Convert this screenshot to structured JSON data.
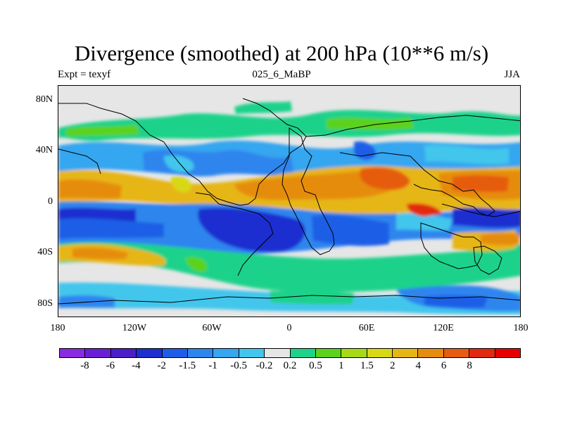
{
  "title": "Divergence (smoothed) at 200 hPa (10**6 m/s)",
  "subtitle_left": "Expt = texyf",
  "subtitle_center": "025_6_MaBP",
  "subtitle_right": "JJA",
  "y_ticks": [
    "80N",
    "40N",
    "0",
    "40S",
    "80S"
  ],
  "x_ticks": [
    "180",
    "120W",
    "60W",
    "0",
    "60E",
    "120E",
    "180"
  ],
  "colorbar": {
    "colors": [
      "#8a2be2",
      "#6a1fd6",
      "#4b1fc8",
      "#1e2fd0",
      "#1e5ee6",
      "#2d85ee",
      "#35a6f0",
      "#42c6ec",
      "#e6e6e6",
      "#1fd28a",
      "#5bd21c",
      "#a6d916",
      "#d8d816",
      "#e6b614",
      "#e68c10",
      "#e65c10",
      "#e22a10",
      "#e60000"
    ],
    "labels": [
      "-8",
      "-6",
      "-4",
      "-2",
      "-1.5",
      "-1",
      "-0.5",
      "-0.2",
      "0.2",
      "0.5",
      "1",
      "1.5",
      "2",
      "4",
      "6",
      "8"
    ]
  },
  "map_data": {
    "field": "divergence",
    "level": "200 hPa",
    "season": "JJA",
    "lon_range": [
      -180,
      180
    ],
    "lat_range": [
      -90,
      90
    ],
    "bands": [
      {
        "name": "northern-high-lat-positive",
        "lat": 60,
        "sign": "positive"
      },
      {
        "name": "northern-mid-lat-negative",
        "lat": 40,
        "sign": "negative"
      },
      {
        "name": "tropical-north-positive",
        "lat": 15,
        "sign": "positive"
      },
      {
        "name": "equatorial-negative",
        "lat": -15,
        "sign": "negative"
      },
      {
        "name": "southern-subtropical-positive",
        "lat": -35,
        "sign": "positive"
      },
      {
        "name": "southern-high-lat-positive",
        "lat": -58,
        "sign": "positive"
      }
    ]
  }
}
